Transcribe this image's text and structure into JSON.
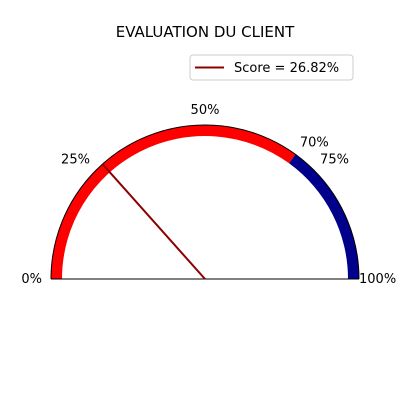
{
  "chart_data": {
    "type": "gauge",
    "title": "EVALUATION DU CLIENT",
    "range": [
      0,
      100
    ],
    "unit": "%",
    "segments": [
      {
        "from": 0,
        "to": 70,
        "color": "#ff0000"
      },
      {
        "from": 70,
        "to": 100,
        "color": "#00008b"
      }
    ],
    "tick_values": [
      0,
      25,
      50,
      70,
      75,
      100
    ],
    "tick_labels": [
      "0%",
      "25%",
      "50%",
      "70%",
      "75%",
      "100%"
    ],
    "needle": {
      "value": 26.82,
      "color": "#8b0000"
    },
    "legend": {
      "position": "top-right",
      "label": "Score = 26.82%"
    }
  }
}
